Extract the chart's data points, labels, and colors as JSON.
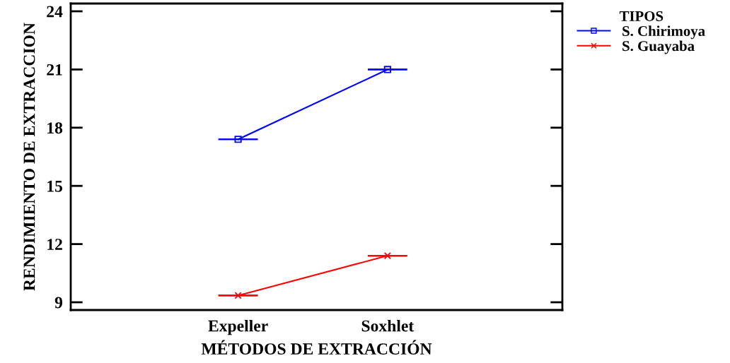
{
  "chart_data": {
    "type": "line",
    "xlabel": "MÉTODOS DE EXTRACCIÓN",
    "ylabel": "RENDIMIENTO DE EXTRACCION",
    "legend_title": "TIPOS",
    "categories": [
      "Expeller",
      "Soxhlet"
    ],
    "series": [
      {
        "name": "S. Chirimoya",
        "color": "#0000ff",
        "marker": "square",
        "values": [
          17.4,
          21.0
        ],
        "errors": [
          0,
          0
        ]
      },
      {
        "name": "S. Guayaba",
        "color": "#ff0000",
        "marker": "cross",
        "values": [
          9.35,
          11.4
        ],
        "errors": [
          0,
          0
        ]
      }
    ],
    "ylim": [
      8.6,
      24.4
    ],
    "yticks": [
      9,
      12,
      15,
      18,
      21,
      24
    ],
    "grid": false,
    "legend": "top right",
    "line_style": "solid"
  }
}
